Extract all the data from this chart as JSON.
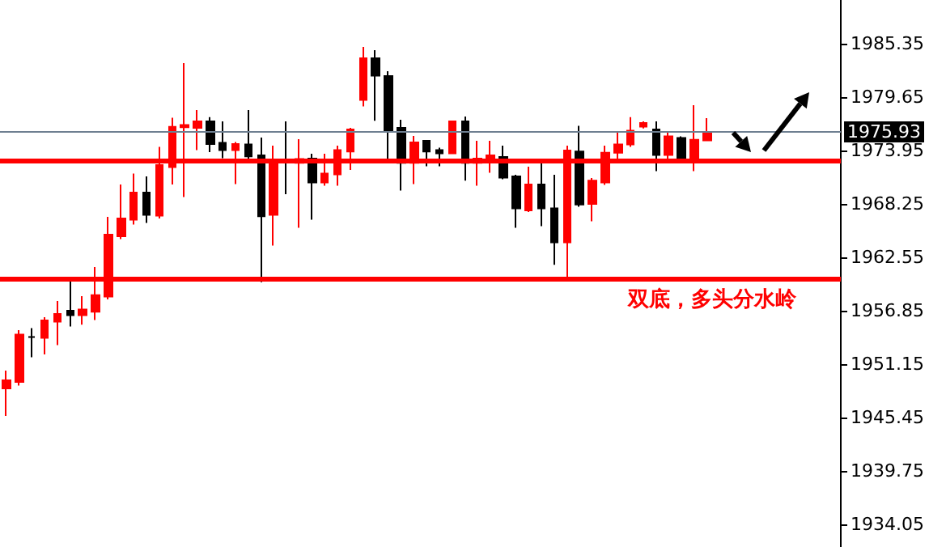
{
  "chart_data": {
    "type": "candlestick",
    "categories": [
      null,
      null,
      null,
      null,
      null,
      null,
      null,
      null,
      null,
      null,
      null,
      null,
      null,
      null,
      null,
      null,
      null,
      null,
      null,
      null,
      null,
      null,
      null,
      null,
      null,
      null,
      null,
      null,
      null,
      null,
      null,
      null,
      null,
      null,
      null,
      null,
      null,
      null,
      null,
      null,
      null,
      null,
      null,
      null,
      null,
      null,
      null,
      null,
      null,
      null,
      null,
      null,
      null,
      null,
      null,
      null,
      null,
      null,
      null,
      null,
      null,
      null,
      null,
      null,
      null,
      null
    ],
    "ohlc": [
      [
        1948.55,
        1950.45,
        1945.62,
        1949.42
      ],
      [
        1949.25,
        1954.77,
        1948.85,
        1954.3
      ],
      [
        1954.03,
        1954.99,
        1951.89,
        1954.03
      ],
      [
        1953.96,
        1956.16,
        1952.18,
        1955.81
      ],
      [
        1955.69,
        1957.88,
        1953.17,
        1956.5
      ],
      [
        1956.85,
        1960.13,
        1955.17,
        1956.38
      ],
      [
        1956.38,
        1958.4,
        1955.35,
        1956.97
      ],
      [
        1956.73,
        1961.51,
        1955.86,
        1958.52
      ],
      [
        1958.35,
        1966.87,
        1958.05,
        1964.97
      ],
      [
        1964.79,
        1970.32,
        1964.5,
        1966.69
      ],
      [
        1966.57,
        1971.48,
        1966.05,
        1969.46
      ],
      [
        1969.46,
        1971.18,
        1966.22,
        1967.09
      ],
      [
        1966.99,
        1974.34,
        1966.69,
        1972.39
      ],
      [
        1972.17,
        1977.45,
        1970.32,
        1976.48
      ],
      [
        1976.42,
        1983.27,
        1968.99,
        1976.66
      ],
      [
        1976.36,
        1978.26,
        1974.0,
        1977.05
      ],
      [
        1977.05,
        1977.52,
        1973.77,
        1974.64
      ],
      [
        1974.76,
        1977.05,
        1973.13,
        1974.0
      ],
      [
        1974.0,
        1974.86,
        1970.37,
        1974.64
      ],
      [
        1974.59,
        1978.26,
        1972.62,
        1973.31
      ],
      [
        1973.43,
        1975.33,
        1959.9,
        1966.92
      ],
      [
        1967.09,
        1974.46,
        1963.81,
        1972.91
      ],
      [
        1972.85,
        1977.05,
        1969.28,
        1972.85
      ],
      [
        1972.62,
        1975.16,
        1965.7,
        1973.03
      ],
      [
        1973.08,
        1973.6,
        1966.57,
        1970.54
      ],
      [
        1970.54,
        1973.6,
        1970.2,
        1971.48
      ],
      [
        1971.41,
        1974.46,
        1970.2,
        1974.0
      ],
      [
        1973.83,
        1976.36,
        1971.87,
        1976.19
      ],
      [
        1979.35,
        1985.0,
        1978.66,
        1983.79
      ],
      [
        1983.79,
        1984.66,
        1977.11,
        1981.94
      ],
      [
        1981.89,
        1982.41,
        1972.74,
        1976.07
      ],
      [
        1976.36,
        1977.23,
        1969.68,
        1972.62
      ],
      [
        1972.62,
        1975.5,
        1970.37,
        1974.81
      ],
      [
        1974.98,
        1974.98,
        1972.27,
        1973.83
      ],
      [
        1974.0,
        1974.24,
        1972.27,
        1973.65
      ],
      [
        1973.65,
        1977.05,
        1973.65,
        1977.05
      ],
      [
        1977.05,
        1977.57,
        1970.72,
        1972.62
      ],
      [
        1972.62,
        1974.98,
        1970.2,
        1973.08
      ],
      [
        1973.08,
        1974.98,
        1971.58,
        1973.43
      ],
      [
        1973.26,
        1974.46,
        1970.89,
        1971.06
      ],
      [
        1971.18,
        1971.36,
        1965.7,
        1967.78
      ],
      [
        1967.55,
        1972.22,
        1967.38,
        1970.32
      ],
      [
        1970.32,
        1972.56,
        1965.88,
        1967.78
      ],
      [
        1967.78,
        1971.36,
        1961.74,
        1964.15
      ],
      [
        1964.15,
        1974.46,
        1960.25,
        1973.95
      ],
      [
        1973.83,
        1976.59,
        1967.95,
        1968.19
      ],
      [
        1968.25,
        1971.01,
        1966.4,
        1970.72
      ],
      [
        1970.54,
        1974.46,
        1970.27,
        1973.72
      ],
      [
        1973.72,
        1976.02,
        1972.74,
        1974.59
      ],
      [
        1974.59,
        1977.52,
        1974.34,
        1976.07
      ],
      [
        1976.49,
        1977.05,
        1976.31,
        1976.88
      ],
      [
        1976.19,
        1977.05,
        1971.75,
        1973.48
      ],
      [
        1973.48,
        1975.85,
        1972.62,
        1975.45
      ],
      [
        1975.28,
        1975.45,
        1972.74,
        1972.74
      ],
      [
        1972.74,
        1978.78,
        1971.75,
        1975.1
      ],
      [
        1975.03,
        1977.4,
        1975.03,
        1975.93
      ],
      null,
      null,
      null,
      null,
      null,
      null,
      null,
      null,
      null,
      null
    ],
    "colors": [
      "#ff0000",
      "#ff0000",
      "#000000",
      "#ff0000",
      "#ff0000",
      "#000000",
      "#ff0000",
      "#ff0000",
      "#ff0000",
      "#ff0000",
      "#ff0000",
      "#000000",
      "#ff0000",
      "#ff0000",
      "#ff0000",
      "#ff0000",
      "#000000",
      "#000000",
      "#ff0000",
      "#000000",
      "#000000",
      "#ff0000",
      "#000000",
      "#ff0000",
      "#000000",
      "#ff0000",
      "#ff0000",
      "#ff0000",
      "#ff0000",
      "#000000",
      "#000000",
      "#000000",
      "#ff0000",
      "#000000",
      "#000000",
      "#ff0000",
      "#000000",
      "#ff0000",
      "#ff0000",
      "#000000",
      "#000000",
      "#ff0000",
      "#000000",
      "#000000",
      "#ff0000",
      "#000000",
      "#ff0000",
      "#ff0000",
      "#ff0000",
      "#ff0000",
      "#ff0000",
      "#000000",
      "#ff0000",
      "#000000",
      "#ff0000",
      "#ff0000",
      null,
      null,
      null,
      null,
      null,
      null,
      null,
      null,
      null,
      null
    ],
    "ylim": [
      1931.63,
      1990.01
    ],
    "yticks": [
      1934.05,
      1939.75,
      1945.45,
      1951.15,
      1956.85,
      1962.55,
      1968.25,
      1973.95,
      1979.65,
      1985.35
    ],
    "grid": false,
    "tick_labels": "y",
    "ref_lines": [
      {
        "axis": "y",
        "value": 1975.93,
        "label": "1975.93",
        "color": "#6e7f91"
      },
      {
        "axis": "y",
        "value": 1960.25,
        "label": null,
        "color": "#ff0000"
      },
      {
        "axis": "y",
        "value": 1972.86,
        "label": null,
        "color": "#ff0000"
      }
    ],
    "annotations": [
      "双底，多头分水岭"
    ]
  }
}
